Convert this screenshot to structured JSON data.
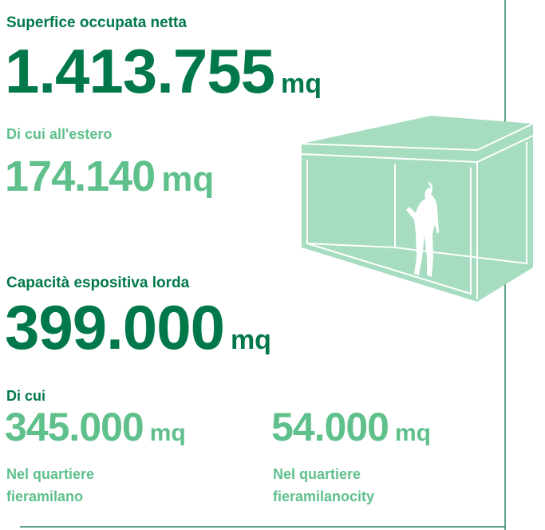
{
  "net_area": {
    "label": "Superfice occupata netta",
    "value": "1.413.755",
    "unit": "mq"
  },
  "abroad": {
    "label": "Di cui all'estero",
    "value": "174.140",
    "unit": "mq"
  },
  "gross_capacity": {
    "label": "Capacità espositiva lorda",
    "value": "399.000",
    "unit": "mq"
  },
  "breakdown": {
    "label": "Di cui",
    "items": [
      {
        "value": "345.000",
        "unit": "mq",
        "line1": "Nel quartiere",
        "line2": "fieramilano"
      },
      {
        "value": "54.000",
        "unit": "mq",
        "line1": "Nel quartiere",
        "line2": "fieramilanocity"
      }
    ]
  }
}
